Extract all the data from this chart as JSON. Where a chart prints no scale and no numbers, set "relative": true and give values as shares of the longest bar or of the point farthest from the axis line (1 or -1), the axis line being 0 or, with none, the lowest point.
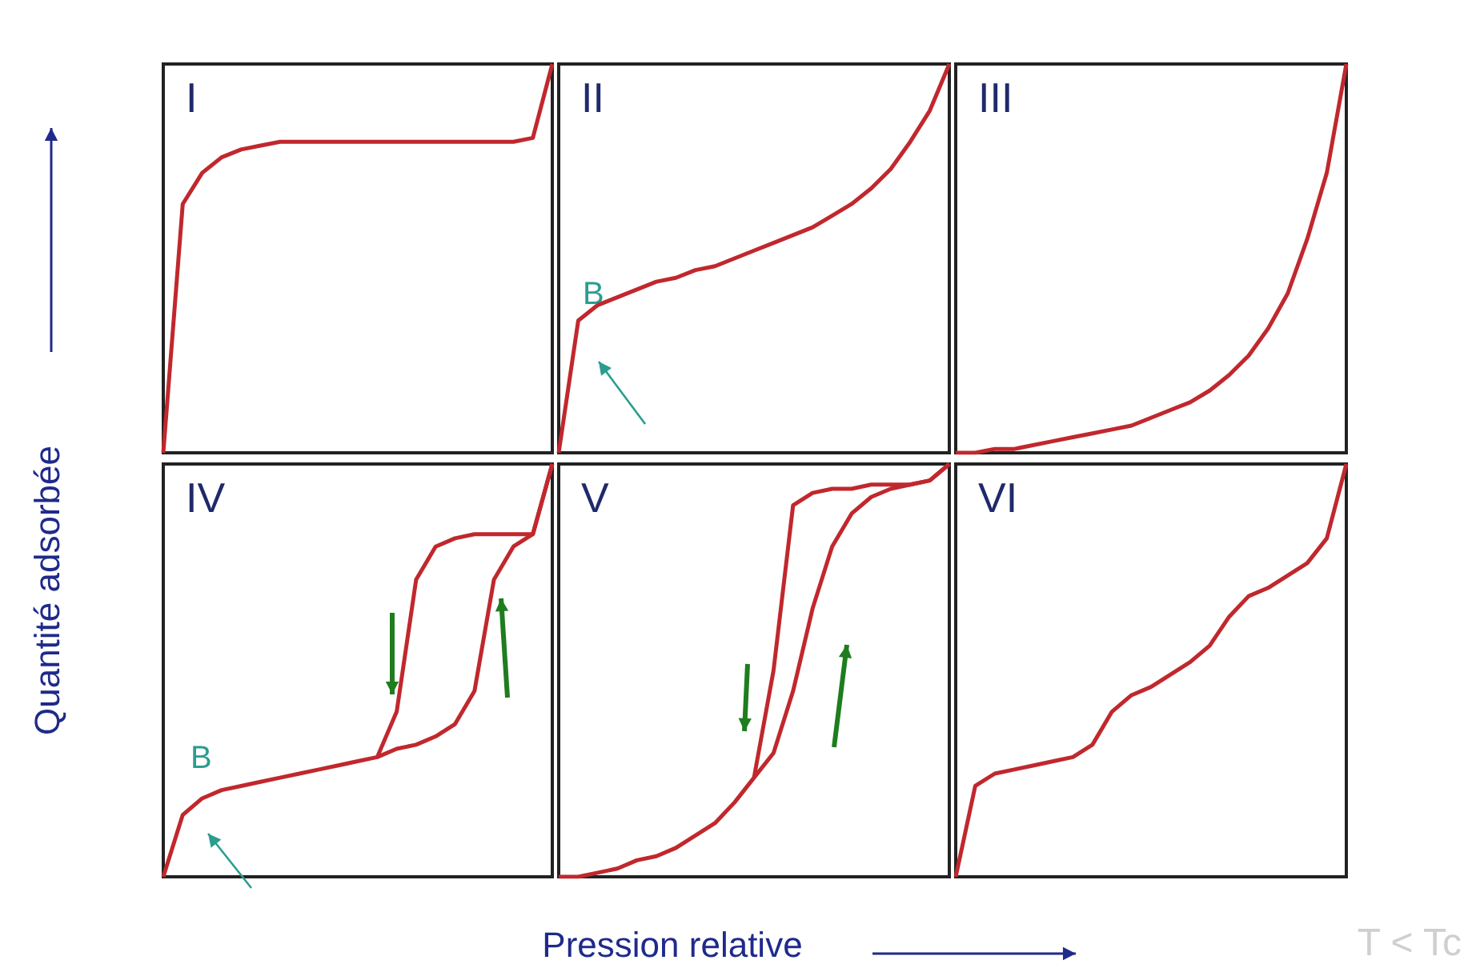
{
  "chart_data": [
    {
      "type": "line",
      "title": "I",
      "ylabel": "Quantité adsorbée",
      "relative": true,
      "marker": "none",
      "categories": [
        null,
        null,
        null,
        null,
        null,
        null,
        null,
        null,
        null,
        null,
        null,
        null,
        null,
        null,
        null,
        null,
        null,
        null,
        null,
        null,
        null
      ],
      "series": [
        {
          "color": "#c0282d",
          "values": [
            0,
            0.64,
            0.72,
            0.76,
            0.78,
            0.79,
            0.8,
            0.8,
            0.8,
            0.8,
            0.8,
            0.8,
            0.8,
            0.8,
            0.8,
            0.8,
            0.8,
            0.8,
            0.8,
            0.81,
            1
          ]
        }
      ]
    },
    {
      "type": "line",
      "title": "II",
      "annotations": [
        "B"
      ],
      "relative": true,
      "marker": "none",
      "categories": [
        null,
        null,
        null,
        null,
        null,
        null,
        null,
        null,
        null,
        null,
        null,
        null,
        null,
        null,
        null,
        null,
        null,
        null,
        null,
        null,
        null
      ],
      "series": [
        {
          "color": "#c0282d",
          "values": [
            0,
            0.34,
            0.38,
            0.4,
            0.42,
            0.44,
            0.45,
            0.47,
            0.48,
            0.5,
            0.52,
            0.54,
            0.56,
            0.58,
            0.61,
            0.64,
            0.68,
            0.73,
            0.8,
            0.88,
            1
          ]
        }
      ]
    },
    {
      "type": "line",
      "title": "III",
      "relative": true,
      "marker": "none",
      "categories": [
        null,
        null,
        null,
        null,
        null,
        null,
        null,
        null,
        null,
        null,
        null,
        null,
        null,
        null,
        null,
        null,
        null,
        null,
        null,
        null,
        null
      ],
      "series": [
        {
          "color": "#c0282d",
          "values": [
            0,
            0,
            0.01,
            0.01,
            0.02,
            0.03,
            0.04,
            0.05,
            0.06,
            0.07,
            0.09,
            0.11,
            0.13,
            0.16,
            0.2,
            0.25,
            0.32,
            0.41,
            0.55,
            0.72,
            1
          ]
        }
      ]
    },
    {
      "type": "line",
      "title": "IV",
      "annotations": [
        "B"
      ],
      "relative": true,
      "marker": "none",
      "categories": [
        null,
        null,
        null,
        null,
        null,
        null,
        null,
        null,
        null,
        null,
        null,
        null,
        null,
        null,
        null,
        null,
        null,
        null,
        null,
        null,
        null
      ],
      "series": [
        {
          "color": "#c0282d",
          "values": [
            0,
            0.15,
            0.19,
            0.21,
            0.22,
            0.23,
            0.24,
            0.25,
            0.26,
            0.27,
            0.28,
            0.29,
            0.31,
            0.32,
            0.34,
            0.37,
            0.45,
            0.72,
            0.8,
            0.83,
            1
          ]
        },
        {
          "color": "#c0282d",
          "values": [
            null,
            null,
            null,
            null,
            null,
            null,
            null,
            null,
            null,
            null,
            null,
            0.29,
            0.4,
            0.72,
            0.8,
            0.82,
            0.83,
            0.83,
            0.83,
            0.83,
            1
          ]
        }
      ]
    },
    {
      "type": "line",
      "title": "V",
      "xlabel": "Pression relative",
      "relative": true,
      "marker": "none",
      "categories": [
        null,
        null,
        null,
        null,
        null,
        null,
        null,
        null,
        null,
        null,
        null,
        null,
        null,
        null,
        null,
        null,
        null,
        null,
        null,
        null,
        null
      ],
      "series": [
        {
          "color": "#c0282d",
          "values": [
            0,
            0,
            0.01,
            0.02,
            0.04,
            0.05,
            0.07,
            0.1,
            0.13,
            0.18,
            0.24,
            0.3,
            0.45,
            0.65,
            0.8,
            0.88,
            0.92,
            0.94,
            0.95,
            0.96,
            1
          ]
        },
        {
          "color": "#c0282d",
          "values": [
            null,
            null,
            null,
            null,
            null,
            null,
            null,
            null,
            null,
            null,
            0.24,
            0.5,
            0.9,
            0.93,
            0.94,
            0.94,
            0.95,
            0.95,
            0.95,
            0.96,
            1
          ]
        }
      ]
    },
    {
      "type": "line",
      "title": "VI",
      "annotations": [
        "T < Tc"
      ],
      "relative": true,
      "marker": "none",
      "categories": [
        null,
        null,
        null,
        null,
        null,
        null,
        null,
        null,
        null,
        null,
        null,
        null,
        null,
        null,
        null,
        null,
        null,
        null,
        null,
        null,
        null
      ],
      "series": [
        {
          "color": "#c0282d",
          "values": [
            0,
            0.22,
            0.25,
            0.26,
            0.27,
            0.28,
            0.29,
            0.32,
            0.4,
            0.44,
            0.46,
            0.49,
            0.52,
            0.56,
            0.63,
            0.68,
            0.7,
            0.73,
            0.76,
            0.82,
            1
          ]
        }
      ]
    }
  ]
}
